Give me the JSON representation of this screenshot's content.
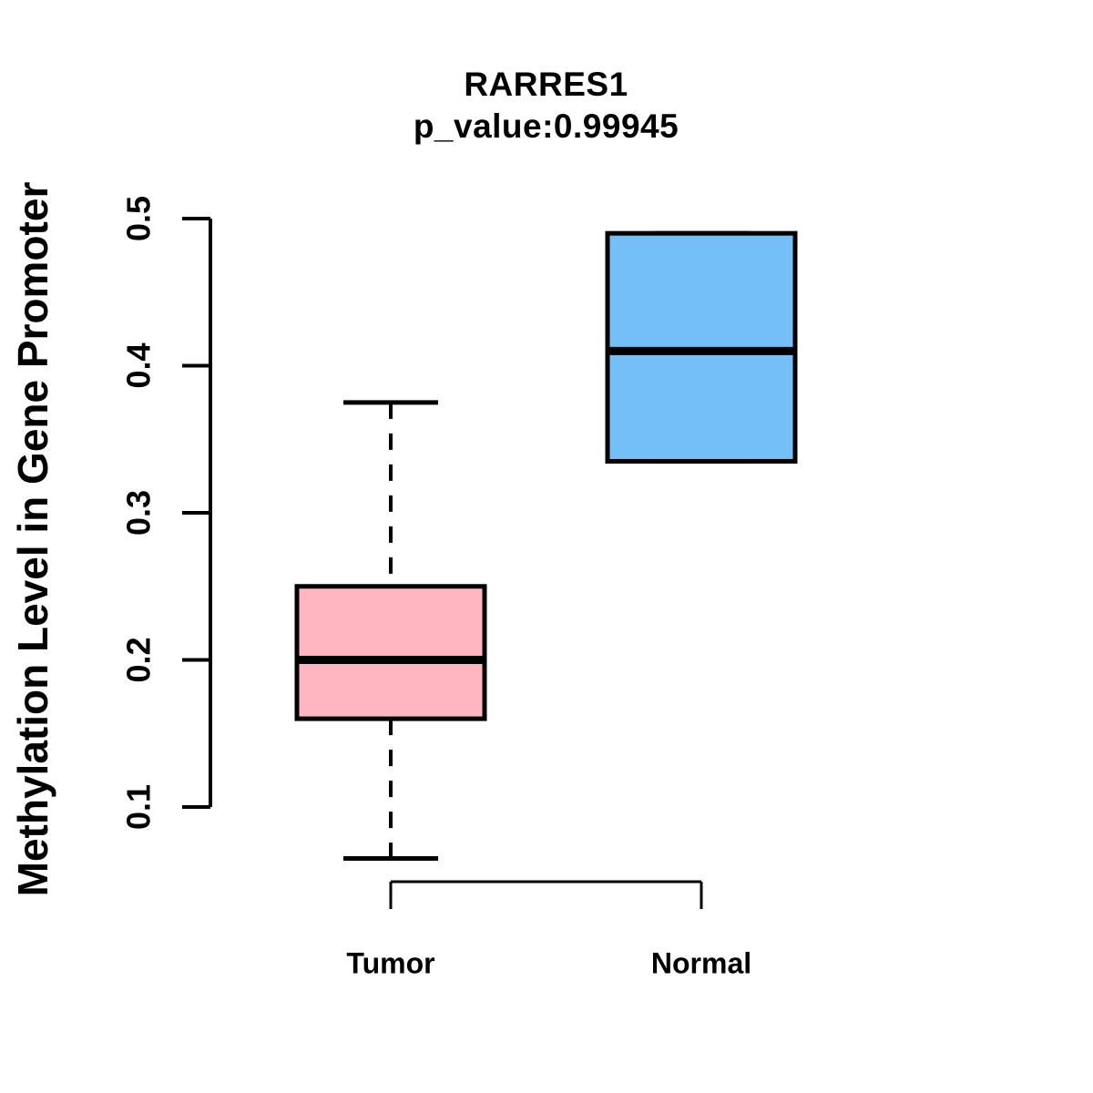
{
  "chart_data": {
    "type": "boxplot",
    "title": "RARRES1",
    "subtitle": "p_value:0.99945",
    "xlabel": "",
    "ylabel": "Methylation Level in Gene Promoter",
    "ylim": [
      0.1,
      0.5
    ],
    "yticks": [
      0.1,
      0.2,
      0.3,
      0.4,
      0.5
    ],
    "grid": false,
    "legend": "none",
    "axis_color": "#000000",
    "background_color": "#ffffff",
    "groups": [
      {
        "label": "Tumor",
        "color": "#FFB6C1",
        "whisker_low": 0.065,
        "q1": 0.16,
        "median": 0.2,
        "q3": 0.25,
        "whisker_high": 0.375,
        "outliers": []
      },
      {
        "label": "Normal",
        "color": "#74BFF7",
        "whisker_low": 0.335,
        "q1": 0.335,
        "median": 0.41,
        "q3": 0.49,
        "whisker_high": 0.49,
        "outliers": []
      }
    ]
  }
}
